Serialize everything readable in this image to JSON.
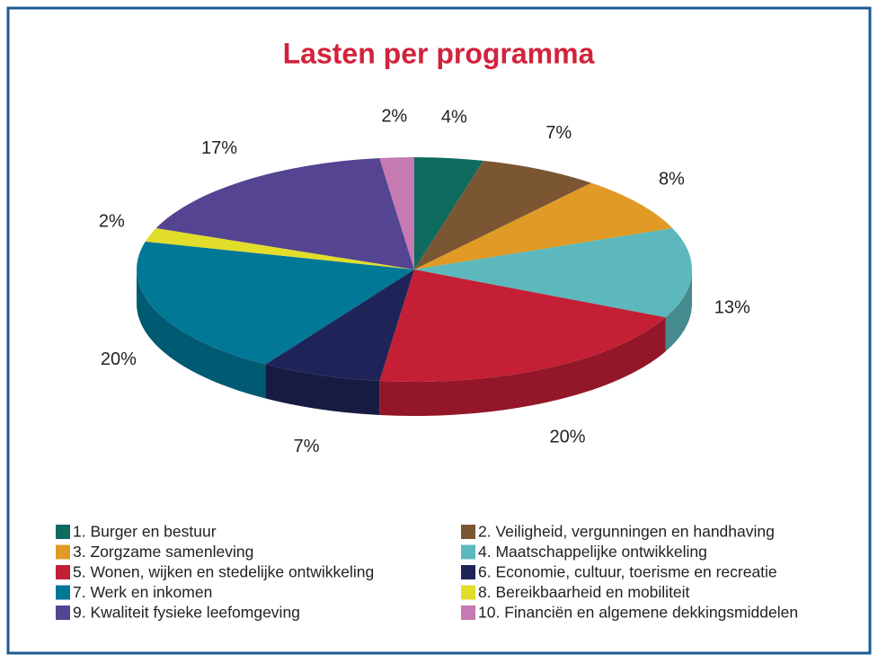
{
  "chart_data": {
    "type": "pie",
    "title": "Lasten per programma",
    "categories": [
      "1. Burger en bestuur",
      "2. Veiligheid, vergunningen en handhaving",
      "3. Zorgzame samenleving",
      "4. Maatschappelijke ontwikkeling",
      "5. Wonen, wijken en stedelijke ontwikkeling",
      "6. Economie, cultuur, toerisme en recreatie",
      "7. Werk en inkomen",
      "8. Bereikbaarheid en mobiliteit",
      "9. Kwaliteit fysieke leefomgeving",
      "10. Financiën en algemene dekkingsmiddelen"
    ],
    "values": [
      4,
      7,
      8,
      13,
      20,
      7,
      20,
      2,
      17,
      2
    ],
    "value_labels": [
      "4%",
      "7%",
      "8%",
      "13%",
      "20%",
      "7%",
      "20%",
      "2%",
      "17%",
      "2%"
    ],
    "colors": [
      "#0e6b5e",
      "#7a5632",
      "#e09a25",
      "#5cb8bc",
      "#c41f35",
      "#1f2458",
      "#007896",
      "#e2dc2a",
      "#544491",
      "#c57ab1"
    ],
    "legend": "bottom"
  }
}
